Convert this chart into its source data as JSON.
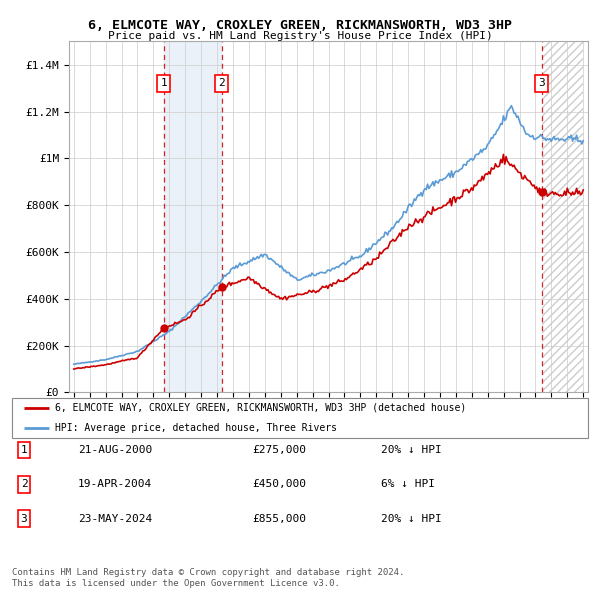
{
  "title": "6, ELMCOTE WAY, CROXLEY GREEN, RICKMANSWORTH, WD3 3HP",
  "subtitle": "Price paid vs. HM Land Registry's House Price Index (HPI)",
  "ylim": [
    0,
    1500000
  ],
  "yticks": [
    0,
    200000,
    400000,
    600000,
    800000,
    1000000,
    1200000,
    1400000
  ],
  "ytick_labels": [
    "£0",
    "£200K",
    "£400K",
    "£600K",
    "£800K",
    "£1M",
    "£1.2M",
    "£1.4M"
  ],
  "year_start": 1995,
  "year_end": 2027,
  "sale_dates_num": [
    2000.644,
    2004.302,
    2024.388
  ],
  "sale_prices": [
    275000,
    450000,
    855000
  ],
  "sale_labels": [
    "1",
    "2",
    "3"
  ],
  "hpi_color": "#5b9bd5",
  "price_color": "#cc0000",
  "shade_color": "#dce9f5",
  "legend_line1": "6, ELMCOTE WAY, CROXLEY GREEN, RICKMANSWORTH, WD3 3HP (detached house)",
  "legend_line2": "HPI: Average price, detached house, Three Rivers",
  "table_rows": [
    {
      "num": "1",
      "date": "21-AUG-2000",
      "price": "£275,000",
      "change": "20% ↓ HPI"
    },
    {
      "num": "2",
      "date": "19-APR-2004",
      "price": "£450,000",
      "change": "6% ↓ HPI"
    },
    {
      "num": "3",
      "date": "23-MAY-2024",
      "price": "£855,000",
      "change": "20% ↓ HPI"
    }
  ],
  "footer1": "Contains HM Land Registry data © Crown copyright and database right 2024.",
  "footer2": "This data is licensed under the Open Government Licence v3.0."
}
